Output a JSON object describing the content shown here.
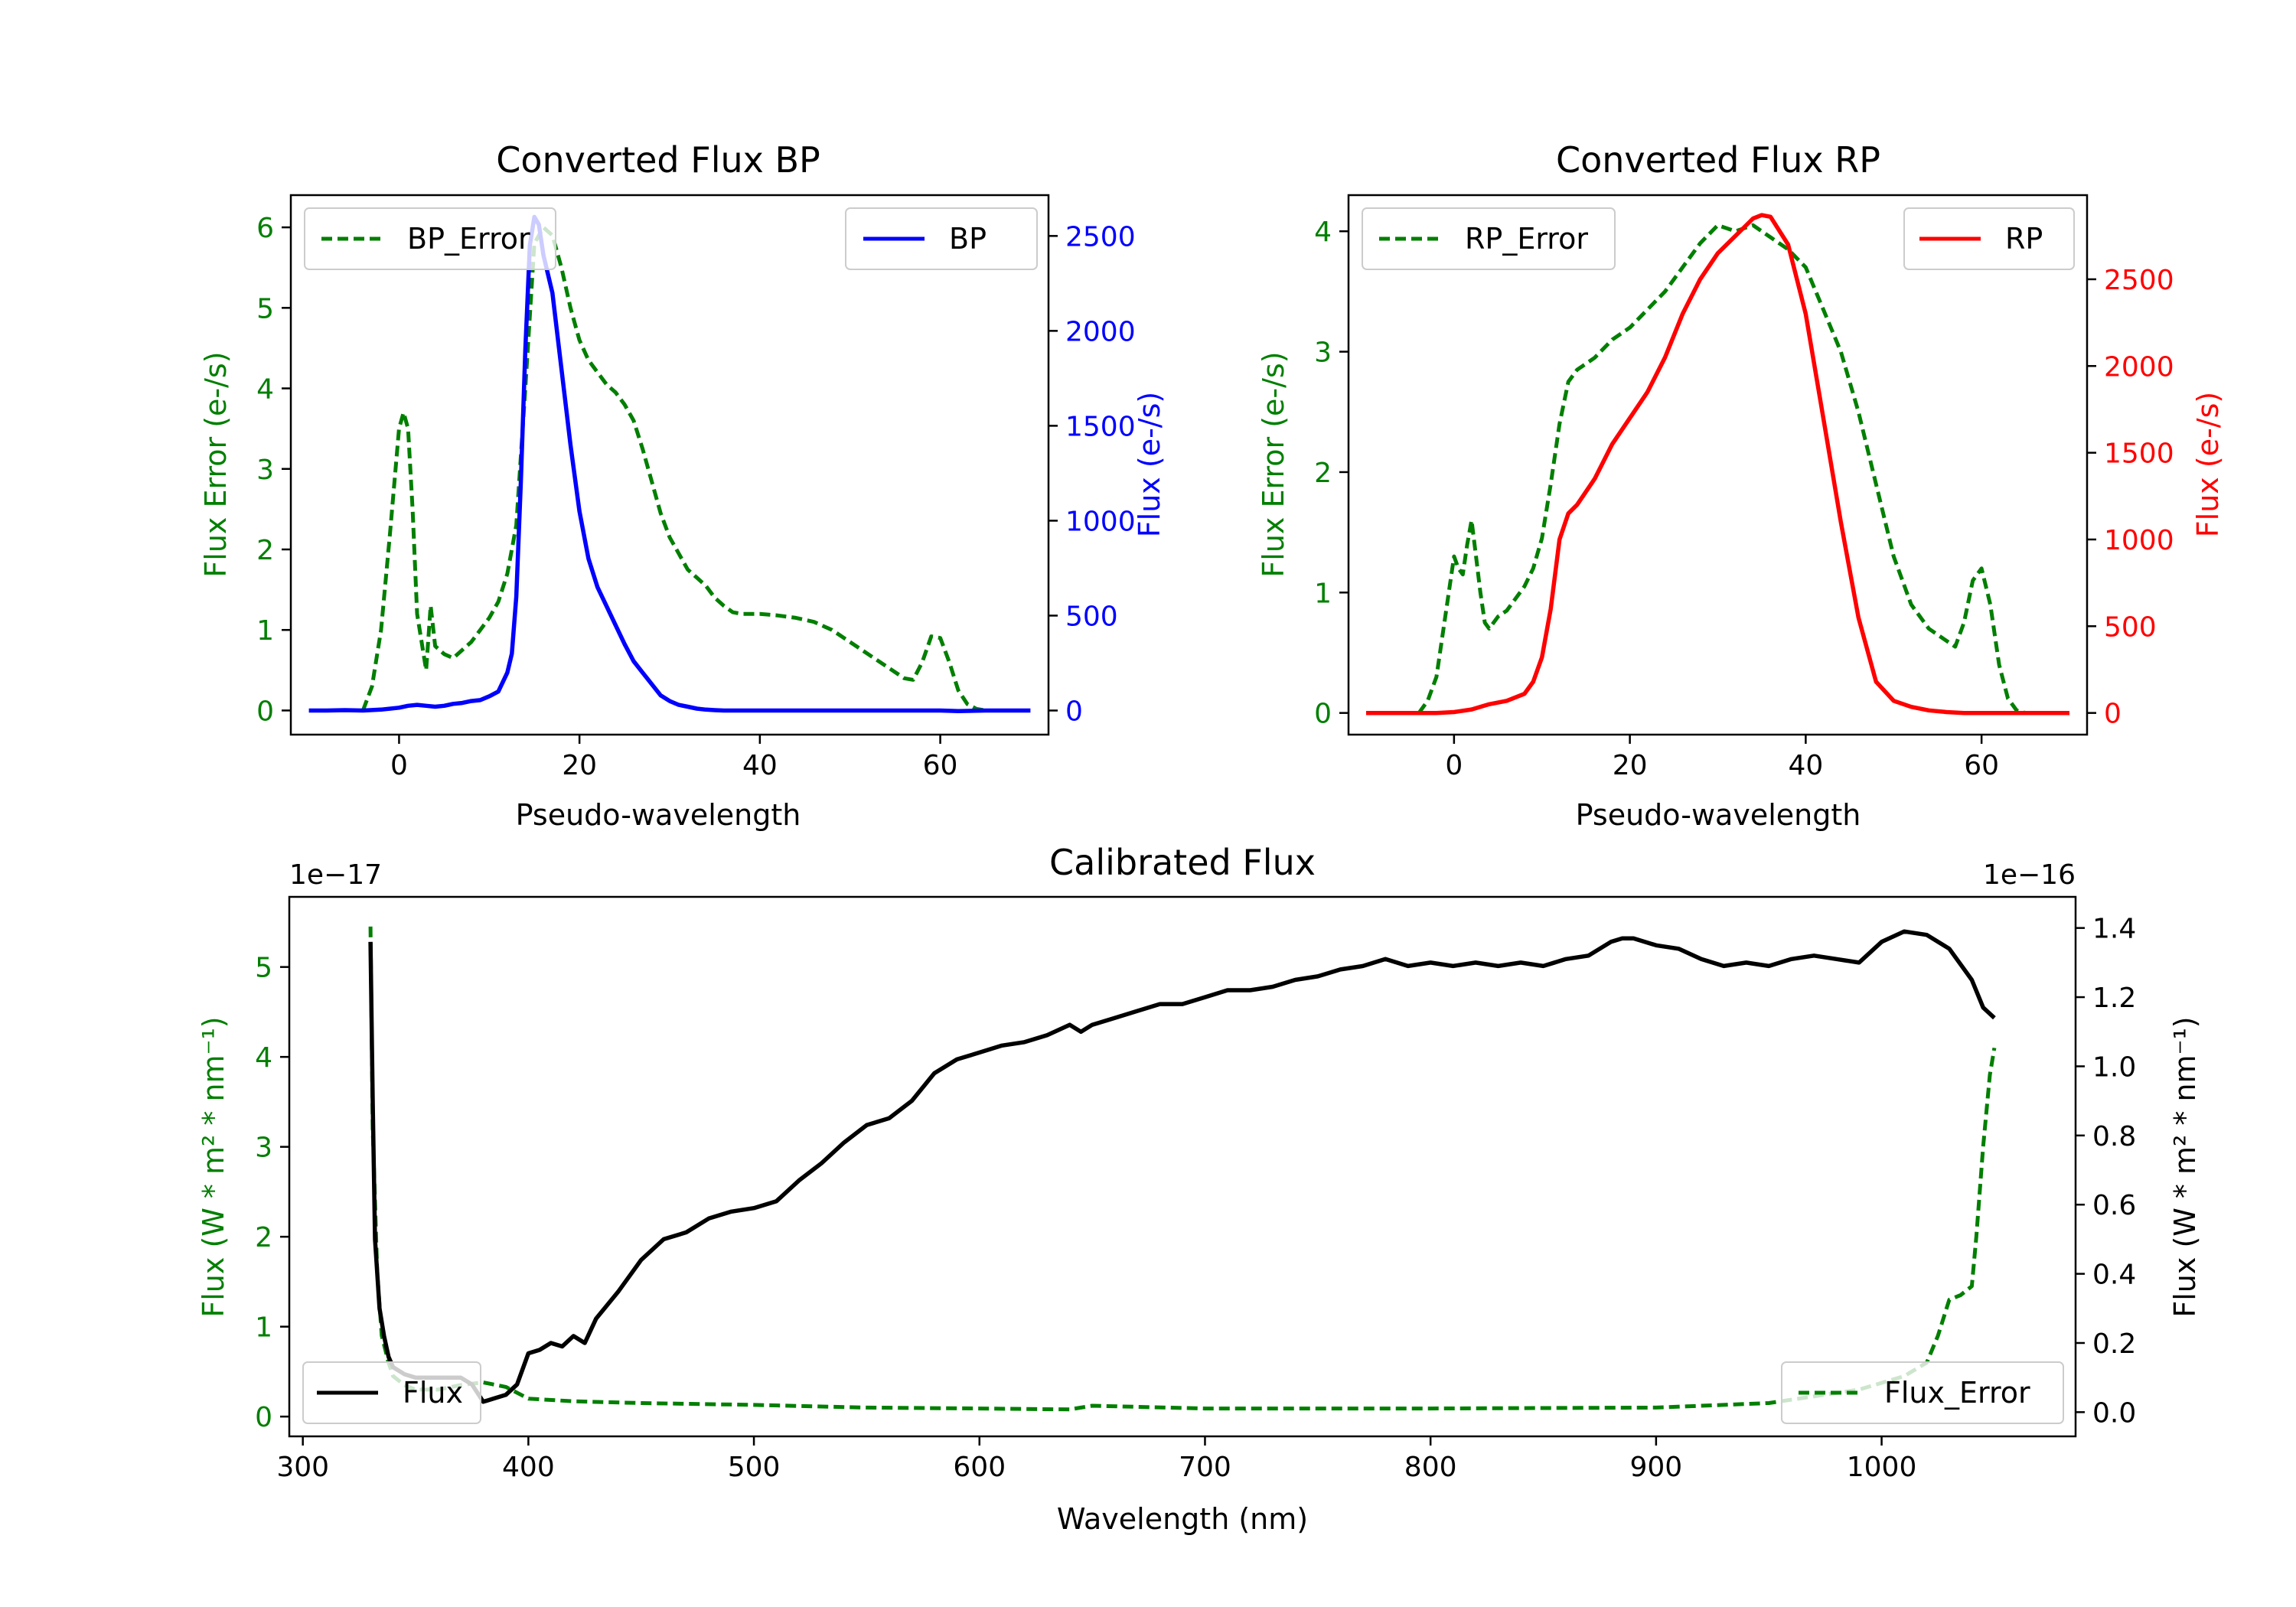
{
  "colors": {
    "green": "#007f00",
    "blue": "#0000ff",
    "red": "#ff0000",
    "black": "#000000"
  },
  "chart_data": [
    {
      "type": "line",
      "title": "Converted Flux BP",
      "xlabel": "Pseudo-wavelength",
      "ylabel": "Flux Error (e-/s)",
      "ylabel_right": "Flux (e-/s)",
      "xlim": [
        -12,
        72
      ],
      "ylim": [
        -0.3,
        6.4
      ],
      "ylim_right": [
        -127,
        2715
      ],
      "xticks": [
        0,
        20,
        40,
        60
      ],
      "yticks": [
        0,
        1,
        2,
        3,
        4,
        5,
        6
      ],
      "yticks_right": [
        0,
        500,
        1000,
        1500,
        2000,
        2500
      ],
      "legend_left": "BP_Error",
      "legend_right": "BP",
      "series": [
        {
          "name": "BP_Error",
          "axis": "left",
          "color": "green",
          "style": "dashed",
          "x": [
            -4,
            -3,
            -2,
            -1,
            0,
            0.5,
            1,
            1.5,
            2,
            3,
            3.5,
            4,
            5,
            6,
            7,
            8,
            9,
            10,
            11,
            12,
            13,
            14,
            15,
            16,
            17,
            18,
            19,
            20,
            21,
            22,
            23,
            24,
            25,
            26,
            27,
            28,
            29,
            30,
            31,
            32,
            33,
            34,
            35,
            36,
            37,
            38,
            40,
            42,
            44,
            46,
            48,
            50,
            52,
            54,
            56,
            57,
            58,
            59,
            60,
            61,
            62,
            63,
            64,
            65
          ],
          "y": [
            0,
            0.3,
            1.0,
            2.2,
            3.5,
            3.7,
            3.5,
            2.5,
            1.2,
            0.5,
            1.3,
            0.8,
            0.7,
            0.65,
            0.75,
            0.85,
            1.0,
            1.15,
            1.35,
            1.7,
            2.3,
            4.0,
            5.8,
            6.0,
            5.9,
            5.5,
            5.0,
            4.6,
            4.35,
            4.2,
            4.05,
            3.95,
            3.8,
            3.6,
            3.25,
            2.85,
            2.45,
            2.15,
            1.95,
            1.75,
            1.65,
            1.55,
            1.4,
            1.3,
            1.22,
            1.2,
            1.2,
            1.18,
            1.15,
            1.1,
            1.0,
            0.85,
            0.7,
            0.55,
            0.4,
            0.38,
            0.6,
            0.92,
            0.9,
            0.6,
            0.25,
            0.08,
            0.02,
            0
          ]
        },
        {
          "name": "BP",
          "axis": "right",
          "color": "blue",
          "style": "solid",
          "x": [
            -10,
            -8,
            -6,
            -4,
            -2,
            0,
            1,
            2,
            3,
            4,
            5,
            6,
            7,
            8,
            9,
            10,
            11,
            12,
            12.5,
            13,
            13.5,
            14,
            14.5,
            15,
            15.5,
            16,
            17,
            18,
            19,
            20,
            21,
            22,
            23,
            24,
            25,
            26,
            27,
            28,
            29,
            30,
            31,
            32,
            33,
            34,
            35,
            36,
            37,
            38,
            40,
            45,
            50,
            55,
            60,
            62,
            65,
            70
          ],
          "y": [
            0,
            0,
            2,
            0,
            5,
            15,
            25,
            30,
            25,
            20,
            25,
            35,
            40,
            50,
            55,
            75,
            100,
            200,
            300,
            600,
            1200,
            1900,
            2450,
            2600,
            2560,
            2400,
            2200,
            1800,
            1400,
            1050,
            800,
            650,
            550,
            450,
            350,
            260,
            200,
            140,
            80,
            50,
            30,
            20,
            10,
            5,
            2,
            0,
            0,
            0,
            0,
            0,
            0,
            0,
            0,
            -3,
            0,
            0
          ]
        }
      ]
    },
    {
      "type": "line",
      "title": "Converted Flux RP",
      "xlabel": "Pseudo-wavelength",
      "ylabel": "Flux Error (e-/s)",
      "ylabel_right": "Flux (e-/s)",
      "xlim": [
        -12,
        72
      ],
      "ylim": [
        -0.18,
        4.3
      ],
      "ylim_right": [
        -125,
        2985
      ],
      "xticks": [
        0,
        20,
        40,
        60
      ],
      "yticks": [
        0,
        1,
        2,
        3,
        4
      ],
      "yticks_right": [
        0,
        500,
        1000,
        1500,
        2000,
        2500
      ],
      "legend_left": "RP_Error",
      "legend_right": "RP",
      "series": [
        {
          "name": "RP_Error",
          "axis": "left",
          "color": "green",
          "style": "dashed",
          "x": [
            -4,
            -3,
            -2,
            -1,
            0,
            0.5,
            1,
            1.5,
            2,
            2.5,
            3,
            3.5,
            4,
            5,
            6,
            7,
            8,
            9,
            10,
            11,
            12,
            13,
            14,
            16,
            18,
            20,
            22,
            24,
            26,
            28,
            30,
            32,
            34,
            36,
            38,
            40,
            42,
            44,
            46,
            48,
            50,
            52,
            54,
            56,
            57,
            58,
            59,
            60,
            61,
            62,
            63,
            64,
            65
          ],
          "y": [
            0,
            0.1,
            0.3,
            0.8,
            1.3,
            1.2,
            1.15,
            1.4,
            1.6,
            1.3,
            1.0,
            0.75,
            0.7,
            0.8,
            0.85,
            0.95,
            1.05,
            1.2,
            1.45,
            1.9,
            2.4,
            2.75,
            2.85,
            2.95,
            3.1,
            3.2,
            3.35,
            3.5,
            3.7,
            3.9,
            4.05,
            4.0,
            4.05,
            3.95,
            3.85,
            3.7,
            3.35,
            3.0,
            2.5,
            1.9,
            1.3,
            0.9,
            0.7,
            0.6,
            0.55,
            0.75,
            1.1,
            1.2,
            0.9,
            0.4,
            0.12,
            0.02,
            0
          ]
        },
        {
          "name": "RP",
          "axis": "right",
          "color": "red",
          "style": "solid",
          "x": [
            -10,
            -5,
            -2,
            0,
            2,
            4,
            6,
            8,
            9,
            10,
            11,
            12,
            13,
            14,
            16,
            18,
            20,
            22,
            24,
            26,
            28,
            30,
            32,
            34,
            35,
            36,
            38,
            40,
            42,
            44,
            46,
            48,
            50,
            52,
            54,
            56,
            58,
            60,
            62,
            65,
            70
          ],
          "y": [
            0,
            0,
            0,
            5,
            20,
            50,
            70,
            110,
            180,
            320,
            600,
            1000,
            1150,
            1200,
            1350,
            1550,
            1700,
            1850,
            2050,
            2300,
            2500,
            2650,
            2750,
            2850,
            2870,
            2860,
            2700,
            2300,
            1700,
            1100,
            550,
            180,
            70,
            35,
            15,
            5,
            0,
            0,
            0,
            0,
            0
          ]
        }
      ]
    },
    {
      "type": "line",
      "title": "Calibrated Flux",
      "xlabel": "Wavelength (nm)",
      "ylabel": "Flux (W * m² * nm⁻¹)",
      "ylabel_right": "Flux (W * m² * nm⁻¹)",
      "offset_left": "1e−17",
      "offset_right": "1e−16",
      "xlim": [
        294,
        1086
      ],
      "ylim": [
        -0.22,
        5.78
      ],
      "ylim_right": [
        -0.07,
        1.49
      ],
      "xticks": [
        300,
        400,
        500,
        600,
        700,
        800,
        900,
        1000
      ],
      "yticks": [
        0,
        1,
        2,
        3,
        4,
        5
      ],
      "yticks_right": [
        "0.0",
        "0.2",
        "0.4",
        "0.6",
        "0.8",
        "1.0",
        "1.2",
        "1.4"
      ],
      "legend_left": "Flux",
      "legend_right": "Flux_Error",
      "series": [
        {
          "name": "Flux_Error",
          "axis": "left",
          "color": "green",
          "style": "dashed",
          "x": [
            330,
            331,
            333,
            335,
            338,
            340,
            345,
            350,
            360,
            370,
            380,
            390,
            400,
            420,
            450,
            500,
            550,
            600,
            640,
            650,
            700,
            800,
            900,
            950,
            990,
            1010,
            1020,
            1025,
            1030,
            1035,
            1040,
            1042,
            1045,
            1048,
            1050
          ],
          "y": [
            5.45,
            3.2,
            1.6,
            0.9,
            0.6,
            0.45,
            0.35,
            0.3,
            0.3,
            0.35,
            0.38,
            0.33,
            0.2,
            0.17,
            0.15,
            0.13,
            0.1,
            0.09,
            0.08,
            0.12,
            0.09,
            0.09,
            0.1,
            0.15,
            0.3,
            0.45,
            0.6,
            0.9,
            1.3,
            1.35,
            1.45,
            2.0,
            3.0,
            3.8,
            4.1
          ]
        }
      ],
      "flux_series": {
        "name": "Flux",
        "axis": "right",
        "color": "black",
        "style": "solid",
        "x": [
          330,
          331,
          332,
          334,
          336,
          338,
          340,
          345,
          350,
          360,
          370,
          375,
          380,
          385,
          390,
          395,
          400,
          405,
          410,
          415,
          420,
          425,
          430,
          440,
          450,
          460,
          470,
          480,
          490,
          500,
          510,
          520,
          530,
          540,
          550,
          560,
          570,
          580,
          590,
          600,
          610,
          620,
          630,
          640,
          645,
          650,
          660,
          670,
          680,
          690,
          700,
          710,
          720,
          730,
          740,
          750,
          760,
          770,
          780,
          790,
          800,
          810,
          820,
          830,
          840,
          850,
          860,
          870,
          880,
          885,
          890,
          900,
          910,
          920,
          930,
          940,
          950,
          960,
          970,
          980,
          990,
          1000,
          1010,
          1020,
          1030,
          1040,
          1045,
          1050
        ],
        "y": [
          1.36,
          0.9,
          0.5,
          0.3,
          0.22,
          0.16,
          0.13,
          0.11,
          0.1,
          0.1,
          0.1,
          0.08,
          0.03,
          0.04,
          0.05,
          0.08,
          0.17,
          0.18,
          0.2,
          0.19,
          0.22,
          0.2,
          0.27,
          0.35,
          0.44,
          0.5,
          0.52,
          0.56,
          0.58,
          0.59,
          0.61,
          0.67,
          0.72,
          0.78,
          0.83,
          0.85,
          0.9,
          0.98,
          1.02,
          1.04,
          1.06,
          1.07,
          1.09,
          1.12,
          1.1,
          1.12,
          1.14,
          1.16,
          1.18,
          1.18,
          1.2,
          1.22,
          1.22,
          1.23,
          1.25,
          1.26,
          1.28,
          1.29,
          1.31,
          1.29,
          1.3,
          1.29,
          1.3,
          1.29,
          1.3,
          1.29,
          1.31,
          1.32,
          1.36,
          1.37,
          1.37,
          1.35,
          1.34,
          1.31,
          1.29,
          1.3,
          1.29,
          1.31,
          1.32,
          1.31,
          1.3,
          1.36,
          1.39,
          1.38,
          1.34,
          1.25,
          1.17,
          1.14
        ]
      }
    }
  ]
}
